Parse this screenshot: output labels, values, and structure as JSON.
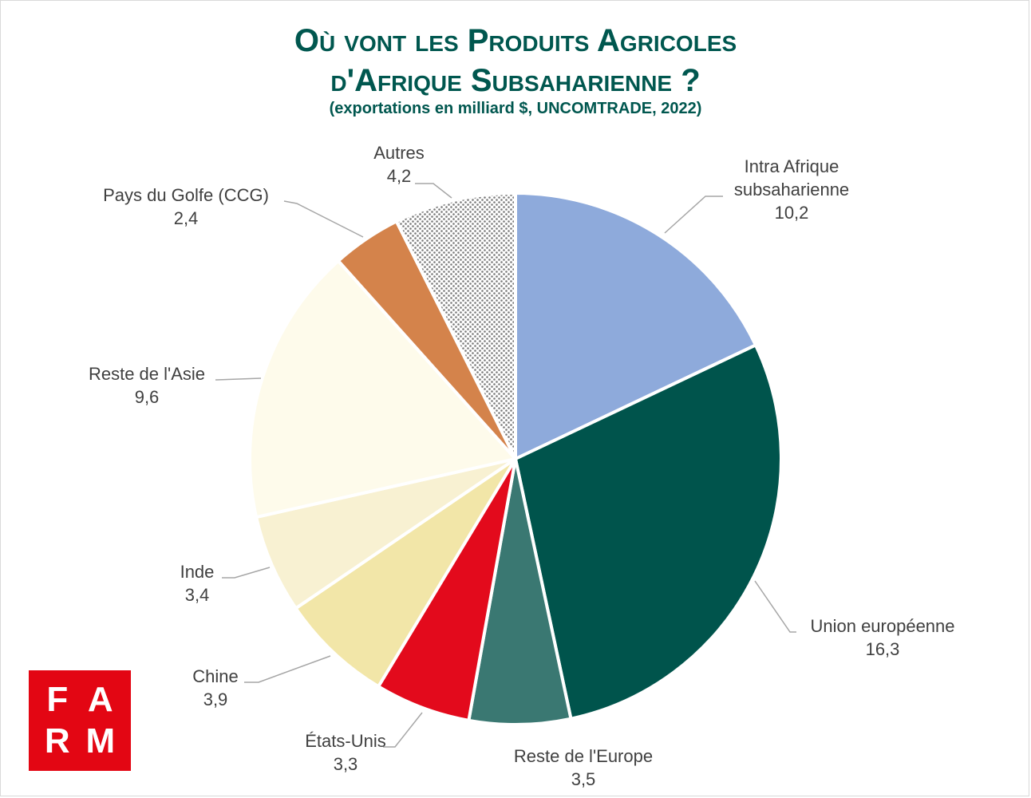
{
  "title_line1": "Où vont les Produits Agricoles",
  "title_line2": "d'Afrique Subsaharienne ?",
  "subtitle": "(exportations en milliard $, UNCOMTRADE,  2022)",
  "logo": {
    "row1": [
      "F",
      "A"
    ],
    "row2": [
      "R",
      "M"
    ]
  },
  "chart_data": {
    "type": "pie",
    "title": "Où vont les Produits Agricoles d'Afrique Subsaharienne ?",
    "subtitle": "(exportations en milliard $, UNCOMTRADE,  2022)",
    "slices": [
      {
        "label_lines": [
          "Intra Afrique",
          "subsaharienne"
        ],
        "value": 10.2,
        "value_label": "10,2",
        "color": "#8eaadb"
      },
      {
        "label_lines": [
          "Union européenne"
        ],
        "value": 16.3,
        "value_label": "16,3",
        "color": "#00544c"
      },
      {
        "label_lines": [
          "Reste de l'Europe"
        ],
        "value": 3.5,
        "value_label": "3,5",
        "color": "#3a7872"
      },
      {
        "label_lines": [
          "États-Unis"
        ],
        "value": 3.3,
        "value_label": "3,3",
        "color": "#e30a1c"
      },
      {
        "label_lines": [
          "Chine"
        ],
        "value": 3.9,
        "value_label": "3,9",
        "color": "#f2e6a8"
      },
      {
        "label_lines": [
          "Inde"
        ],
        "value": 3.4,
        "value_label": "3,4",
        "color": "#f8f1d2"
      },
      {
        "label_lines": [
          "Reste de l'Asie"
        ],
        "value": 9.6,
        "value_label": "9,6",
        "color": "#fefbeb"
      },
      {
        "label_lines": [
          "Pays du Golfe (CCG)"
        ],
        "value": 2.4,
        "value_label": "2,4",
        "color": "#d4834b"
      },
      {
        "label_lines": [
          "Autres"
        ],
        "value": 4.2,
        "value_label": "4,2",
        "color": "#8c8c8c",
        "pattern": "dotted"
      }
    ]
  }
}
